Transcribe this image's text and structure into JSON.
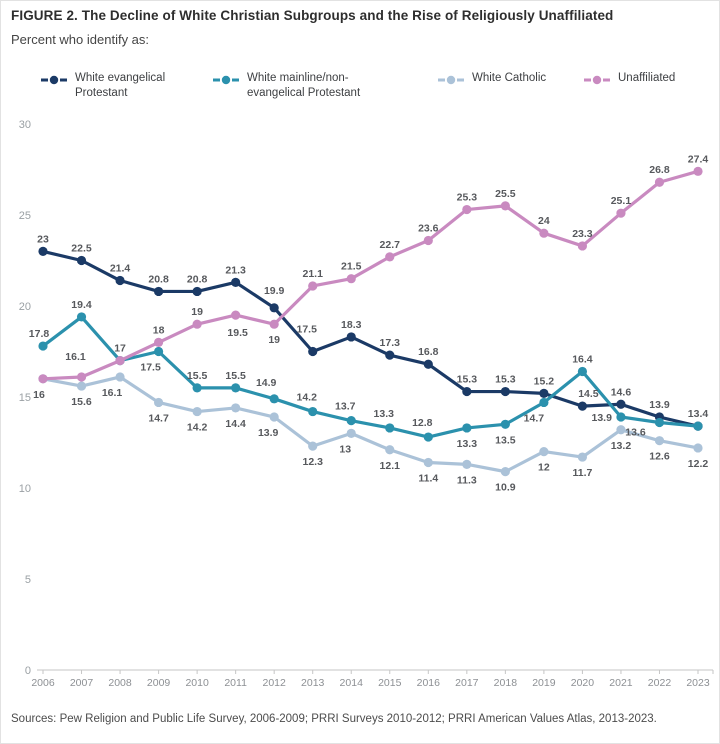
{
  "figure": {
    "title": "FIGURE 2.  The Decline of White Christian Subgroups and the Rise of Religiously Unaffiliated",
    "subtitle": "Percent who identify as:",
    "source": "Sources: Pew Religion and Public Life Survey, 2006-2009; PRRI Surveys 2010-2012; PRRI American Values Atlas, 2013-2023."
  },
  "chart_data": {
    "type": "line",
    "title": "The Decline of White Christian Subgroups and the Rise of Religiously Unaffiliated",
    "xlabel": "",
    "ylabel": "Percent who identify as",
    "x": [
      2006,
      2007,
      2008,
      2009,
      2010,
      2011,
      2012,
      2013,
      2014,
      2015,
      2016,
      2017,
      2018,
      2019,
      2020,
      2021,
      2022,
      2023
    ],
    "ylim": [
      0,
      30
    ],
    "yticks": [
      30,
      25,
      20,
      15,
      10,
      5,
      0
    ],
    "grid": false,
    "legend_position": "top",
    "axis_color": "#c6c6c6",
    "series": [
      {
        "name": "White evangelical Protestant",
        "legend_lines": [
          "White evangelical",
          "Protestant"
        ],
        "color": "#1b3a66",
        "values": [
          23,
          22.5,
          21.4,
          20.8,
          20.8,
          21.3,
          19.9,
          17.5,
          18.3,
          17.3,
          16.8,
          15.3,
          15.3,
          15.2,
          14.5,
          14.6,
          13.9,
          13.4
        ],
        "label_side": [
          "a",
          "a",
          "a",
          "a",
          "a",
          "a",
          "a",
          "a",
          "a",
          "a",
          "a",
          "a",
          "a",
          "a",
          "a",
          "a",
          "a",
          "a"
        ],
        "label_nudge": {
          "6": [
            0,
            -5
          ],
          "7": [
            -6,
            -10
          ],
          "14": [
            6,
            0
          ]
        }
      },
      {
        "name": "White mainline/non-evangelical Protestant",
        "legend_lines": [
          "White mainline/non-",
          "evangelical Protestant"
        ],
        "color": "#2b91ad",
        "values": [
          17.8,
          19.4,
          17,
          17.5,
          15.5,
          15.5,
          14.9,
          14.2,
          13.7,
          13.3,
          12.8,
          13.3,
          13.5,
          14.7,
          16.4,
          13.9,
          13.6,
          13.4
        ],
        "label_side": [
          "a",
          "a",
          "a",
          "b",
          "a",
          "a",
          "a",
          "a",
          "a",
          "a",
          "a",
          "b",
          "b",
          "b",
          "a",
          "l",
          "b",
          "n"
        ],
        "label_nudge": {
          "0": [
            -4,
            0
          ],
          "3": [
            -8,
            0
          ],
          "6": [
            -8,
            -4
          ],
          "7": [
            -6,
            -2
          ],
          "8": [
            -6,
            -2
          ],
          "9": [
            -6,
            -2
          ],
          "10": [
            -6,
            -2
          ],
          "13": [
            -10,
            0
          ],
          "16": [
            -24,
            -6
          ]
        }
      },
      {
        "name": "White Catholic",
        "legend_lines": [
          "White Catholic"
        ],
        "color": "#abc2d8",
        "values": [
          16,
          15.6,
          16.1,
          14.7,
          14.2,
          14.4,
          13.9,
          12.3,
          13,
          12.1,
          11.4,
          11.3,
          10.9,
          12,
          11.7,
          13.2,
          12.6,
          12.2
        ],
        "label_side": [
          "n",
          "b",
          "b",
          "b",
          "b",
          "b",
          "b",
          "b",
          "b",
          "b",
          "b",
          "b",
          "b",
          "b",
          "b",
          "b",
          "b",
          "b"
        ],
        "label_nudge": {
          "2": [
            -8,
            0
          ],
          "6": [
            -6,
            0
          ],
          "8": [
            -6,
            0
          ]
        }
      },
      {
        "name": "Unaffiliated",
        "legend_lines": [
          "Unaffiliated"
        ],
        "color": "#c98ac0",
        "values": [
          16,
          16.1,
          17,
          18,
          19,
          19.5,
          19,
          21.1,
          21.5,
          22.7,
          23.6,
          25.3,
          25.5,
          24,
          23.3,
          25.1,
          26.8,
          27.4
        ],
        "label_side": [
          "b",
          "a",
          "n",
          "a",
          "a",
          "b",
          "b",
          "a",
          "a",
          "a",
          "a",
          "a",
          "a",
          "a",
          "a",
          "a",
          "a",
          "a"
        ],
        "label_nudge": {
          "0": [
            -4,
            0
          ],
          "1": [
            -6,
            -8
          ],
          "5": [
            2,
            2
          ]
        }
      }
    ]
  }
}
